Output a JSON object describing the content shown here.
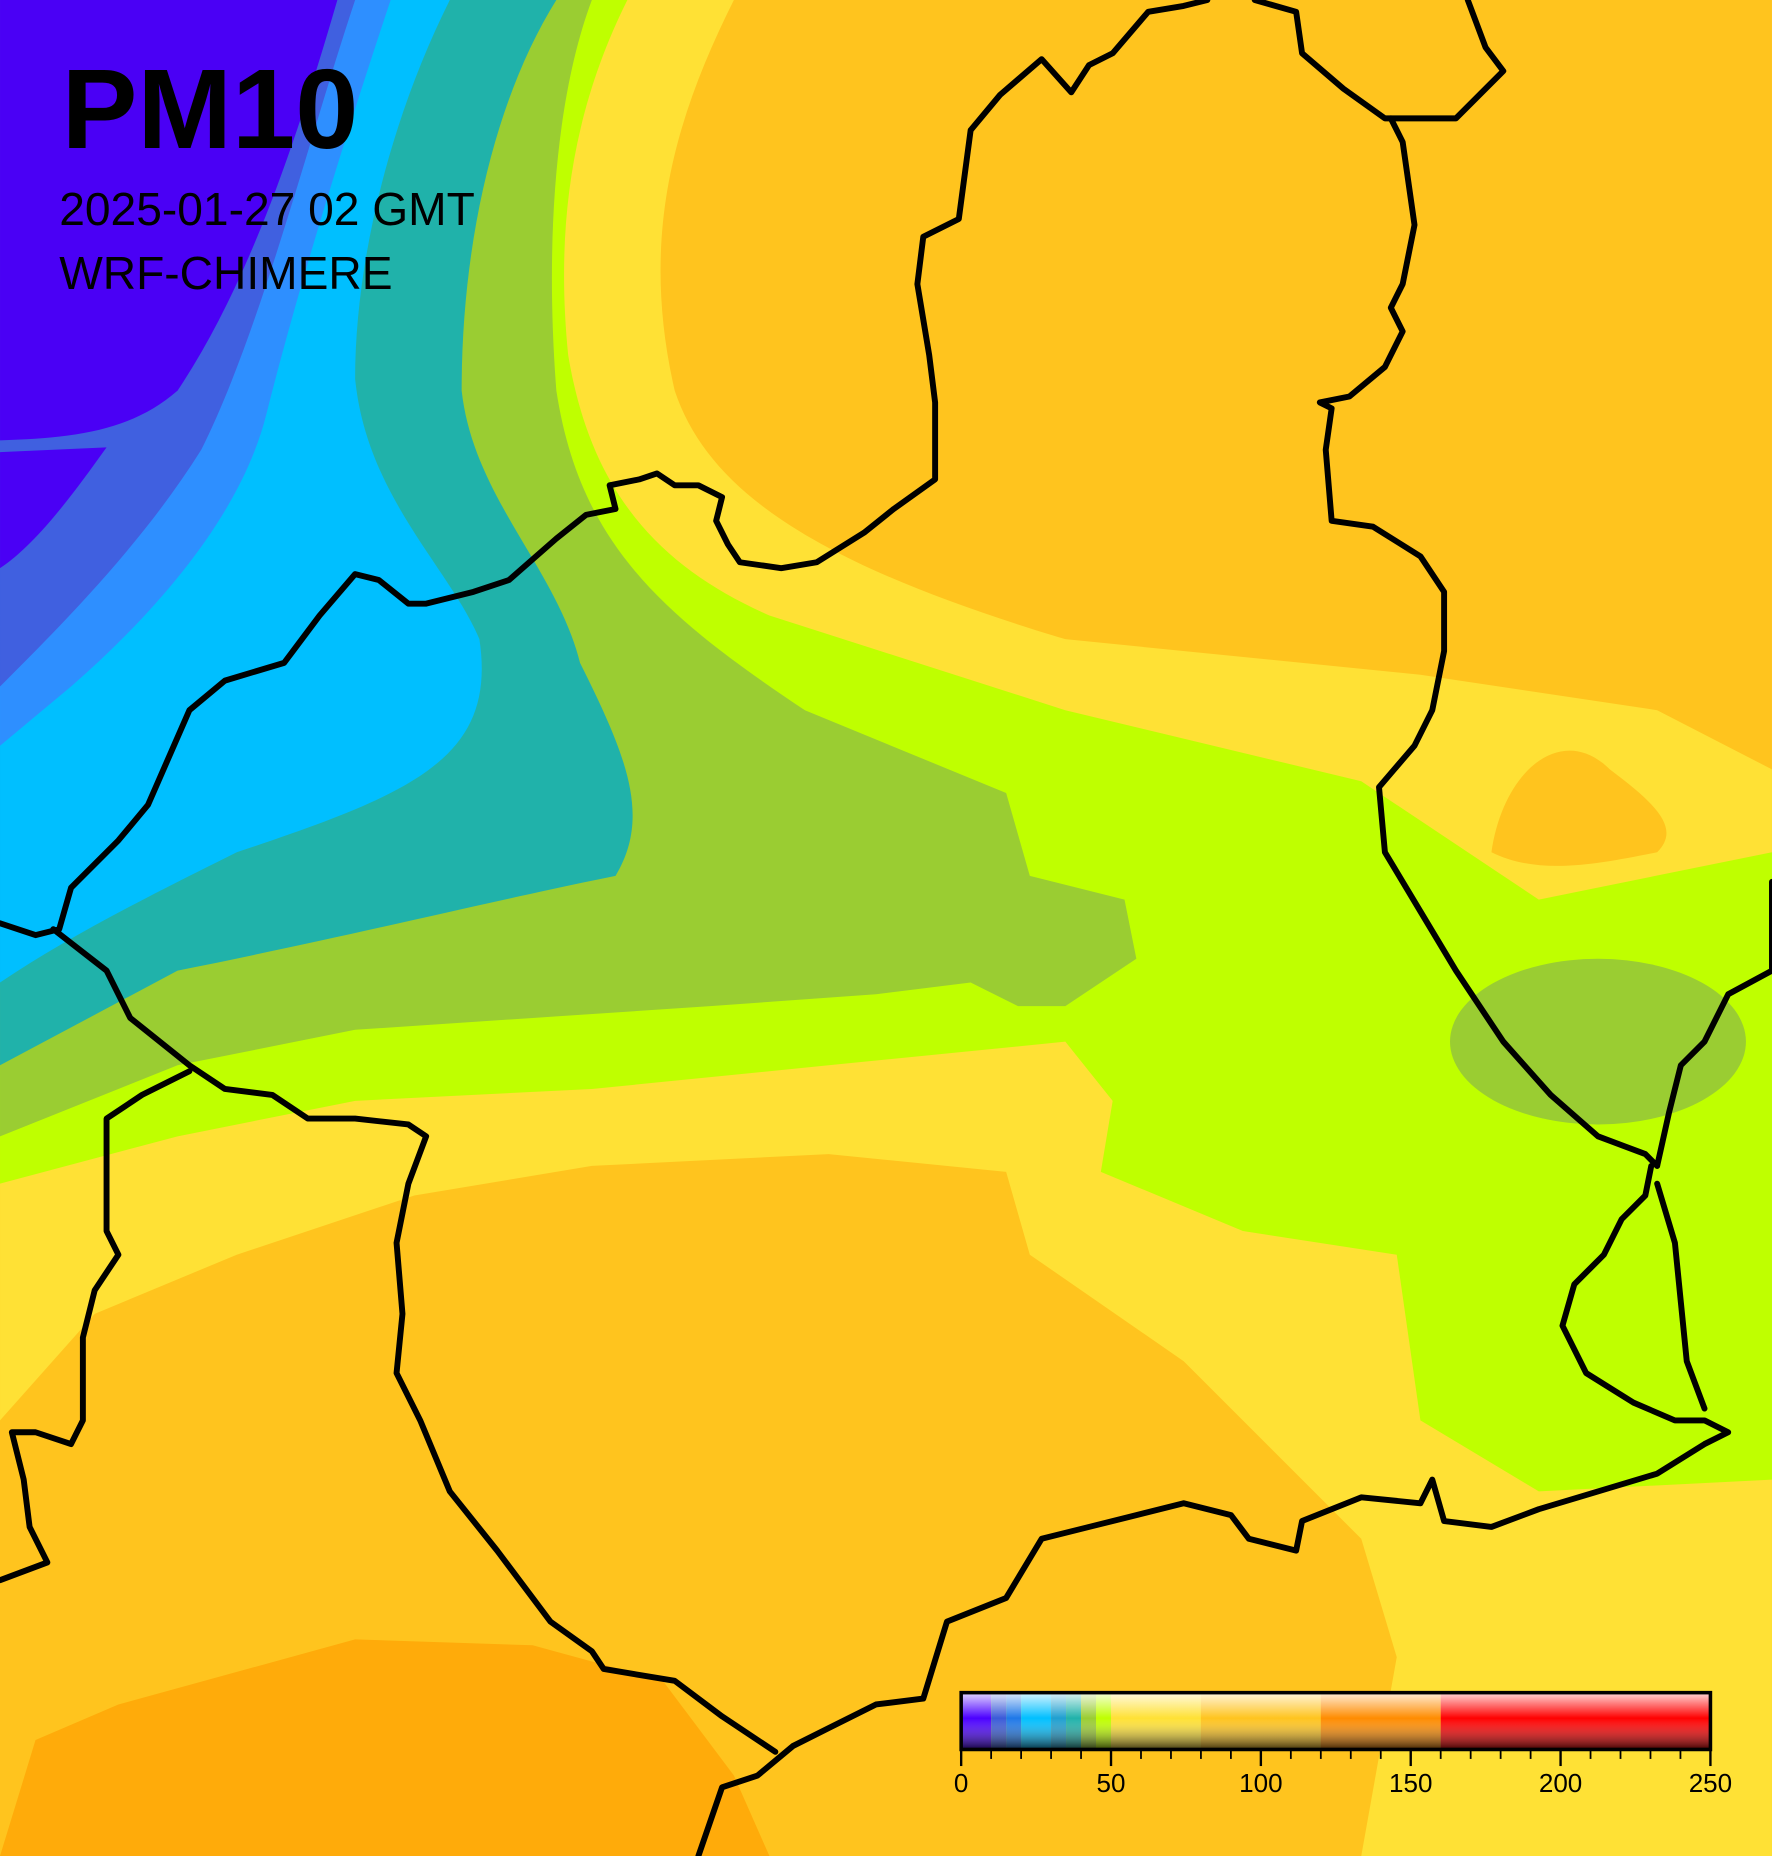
{
  "title": "PM10",
  "subtitle": "2025-01-27 02 GMT",
  "model": "WRF-CHIMERE",
  "colorbar": {
    "lim": [
      0,
      250
    ],
    "ticks": [
      0,
      50,
      100,
      150,
      200,
      250
    ],
    "minor_ticks": [
      0,
      10,
      20,
      30,
      40,
      50,
      60,
      70,
      80,
      90,
      100,
      110,
      120,
      130,
      140,
      150,
      160,
      170,
      180,
      190,
      200,
      210,
      220,
      230,
      240,
      250
    ],
    "bands": [
      {
        "from": 0,
        "to": 10,
        "color": "#4b00ff"
      },
      {
        "from": 10,
        "to": 15,
        "color": "#3a5ad8"
      },
      {
        "from": 15,
        "to": 20,
        "color": "#1e78e8"
      },
      {
        "from": 20,
        "to": 30,
        "color": "#00bfff"
      },
      {
        "from": 30,
        "to": 35,
        "color": "#1e9fd0"
      },
      {
        "from": 35,
        "to": 40,
        "color": "#20b2aa"
      },
      {
        "from": 40,
        "to": 45,
        "color": "#9acd32"
      },
      {
        "from": 45,
        "to": 50,
        "color": "#bfff00"
      },
      {
        "from": 50,
        "to": 80,
        "color": "#ffe135"
      },
      {
        "from": 80,
        "to": 120,
        "color": "#ffc41e"
      },
      {
        "from": 120,
        "to": 160,
        "color": "#ff8c00"
      },
      {
        "from": 160,
        "to": 250,
        "color": "#ff0000"
      }
    ]
  }
}
